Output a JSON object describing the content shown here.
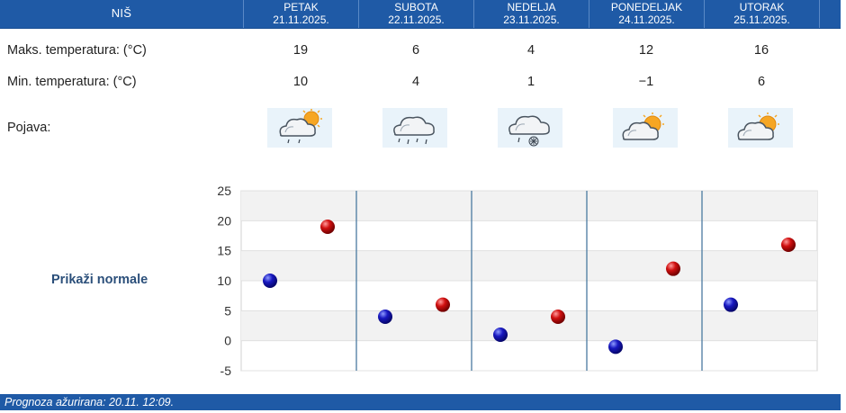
{
  "header": {
    "city": "NIŠ",
    "days": [
      {
        "name": "PETAK",
        "date": "21.11.2025."
      },
      {
        "name": "SUBOTA",
        "date": "22.11.2025."
      },
      {
        "name": "NEDELJA",
        "date": "23.11.2025."
      },
      {
        "name": "PONEDELJAK",
        "date": "24.11.2025."
      },
      {
        "name": "UTORAK",
        "date": "25.11.2025."
      }
    ]
  },
  "rows": {
    "max_label": "Maks. temperatura: (°C)",
    "min_label": "Min. temperatura: (°C)",
    "phenomena_label": "Pojava:",
    "max_values": [
      "19",
      "6",
      "4",
      "12",
      "16"
    ],
    "min_values": [
      "10",
      "4",
      "1",
      "−1",
      "6"
    ],
    "icons": [
      "sun-cloud-rain-icon",
      "cloud-rain-icon",
      "cloud-rain-snow-icon",
      "sun-cloud-icon",
      "sun-cloud-icon"
    ]
  },
  "normals_link": "Prikaži normale",
  "footer": {
    "text": "Prognoza ažurirana:  20.11. 12:09."
  },
  "colors": {
    "header_bg": "#1f5aa6",
    "min_marker": "#1010a8",
    "max_marker": "#c01010",
    "divider": "#4a7aa0"
  },
  "chart_data": {
    "type": "scatter",
    "categories": [
      "PETAK",
      "SUBOTA",
      "NEDELJA",
      "PONEDELJAK",
      "UTORAK"
    ],
    "series": [
      {
        "values": [
          10,
          4,
          1,
          -1,
          6
        ]
      },
      {
        "values": [
          19,
          6,
          4,
          12,
          16
        ]
      }
    ],
    "yticks": [
      "25",
      "20",
      "15",
      "10",
      "5",
      "0",
      "-5"
    ],
    "ylim": [
      -5,
      25
    ],
    "grid": true
  }
}
